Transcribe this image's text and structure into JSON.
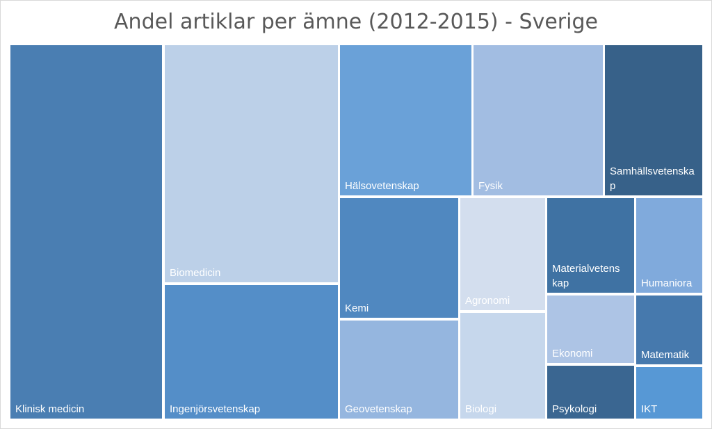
{
  "chart_data": {
    "type": "treemap",
    "title": "Andel artiklar per ämne (2012-2015) - Sverige",
    "label_color": "#ffffff",
    "categories": [
      "Klinisk medicin",
      "Biomedicin",
      "Ingenjörsvetenskap",
      "Hälsovetenskap",
      "Fysik",
      "Samhällsvetenska p",
      "Kemi",
      "Geovetenskap",
      "Agronomi",
      "Biologi",
      "Materialvetens kap",
      "Humaniora",
      "Ekonomi",
      "Matematik",
      "Psykologi",
      "IKT"
    ],
    "values": [
      19.3,
      12.9,
      9.6,
      6.7,
      5.9,
      5.4,
      5.1,
      4.9,
      4.7,
      4.5,
      2.9,
      2.5,
      2.4,
      2.1,
      2.2,
      1.9
    ],
    "colors": [
      "#4a7eb2",
      "#bcd0e8",
      "#548ec8",
      "#6aa1d8",
      "#a2bde2",
      "#376189",
      "#5088c0",
      "#95b6df",
      "#d3deee",
      "#c6d7ec",
      "#3f72a3",
      "#80aadc",
      "#adc4e5",
      "#4679ad",
      "#3a6691",
      "#5798d5"
    ]
  }
}
